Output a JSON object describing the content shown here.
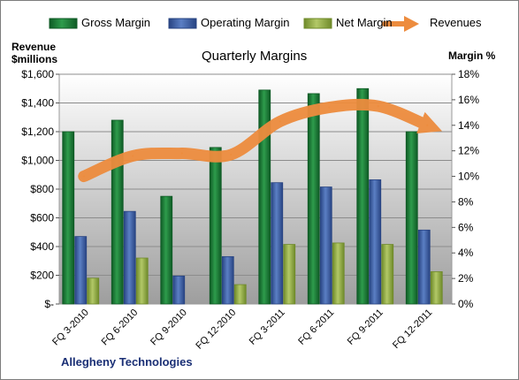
{
  "legend": {
    "gross": "Gross Margin",
    "operating": "Operating Margin",
    "net": "Net Margin",
    "revenues": "Revenues"
  },
  "left_axis_title": [
    "Revenue",
    "$millions"
  ],
  "right_axis_title": "Margin %",
  "footer": "Allegheny Technologies",
  "colors": {
    "gross": "#1a7a36",
    "operating": "#3b5da2",
    "net": "#8fab3e",
    "revenues": "#ed8c3e",
    "plot_top": "#ffffff",
    "plot_bottom": "#9e9e9e"
  },
  "chart_data": {
    "type": "bar",
    "title": "Quarterly Margins",
    "categories": [
      "FQ 3-2010",
      "FQ 6-2010",
      "FQ 9-2010",
      "FQ 12-2010",
      "FQ 3-2011",
      "FQ 6-2011",
      "FQ 9-2011",
      "FQ 12-2011"
    ],
    "series": [
      {
        "name": "Gross Margin",
        "axis": "left",
        "values": [
          1200,
          1280,
          750,
          1090,
          1490,
          1465,
          1500,
          1200
        ]
      },
      {
        "name": "Operating Margin",
        "axis": "left",
        "values": [
          470,
          645,
          195,
          330,
          845,
          815,
          865,
          515
        ]
      },
      {
        "name": "Net Margin",
        "axis": "left",
        "values": [
          180,
          320,
          0,
          135,
          415,
          425,
          415,
          225
        ]
      },
      {
        "name": "Revenues",
        "type": "line",
        "axis": "right",
        "values": [
          10.0,
          11.6,
          11.8,
          11.7,
          14.3,
          15.4,
          15.5,
          14.0
        ]
      }
    ],
    "left_axis": {
      "ylim": [
        0,
        1600
      ],
      "ticks": [
        0,
        200,
        400,
        600,
        800,
        1000,
        1200,
        1400,
        1600
      ],
      "tick_labels": [
        "$-",
        "$200",
        "$400",
        "$600",
        "$800",
        "$1,000",
        "$1,200",
        "$1,400",
        "$1,600"
      ]
    },
    "right_axis": {
      "ylim": [
        0,
        18
      ],
      "ticks": [
        0,
        2,
        4,
        6,
        8,
        10,
        12,
        14,
        16,
        18
      ],
      "tick_labels": [
        "0%",
        "2%",
        "4%",
        "6%",
        "8%",
        "10%",
        "12%",
        "14%",
        "16%",
        "18%"
      ]
    },
    "grid": true,
    "legend_position": "top"
  }
}
